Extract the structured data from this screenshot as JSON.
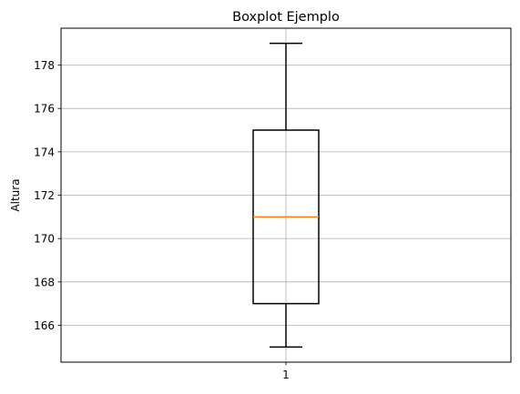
{
  "chart_data": {
    "type": "boxplot",
    "title": "Boxplot Ejemplo",
    "xlabel": "",
    "ylabel": "Altura",
    "categories": [
      "1"
    ],
    "boxes": [
      {
        "category": "1",
        "whisker_low": 165,
        "q1": 167,
        "median": 171,
        "q3": 175,
        "whisker_high": 179
      }
    ],
    "ylim": [
      164.3,
      179.7
    ],
    "yticks": [
      166,
      168,
      170,
      172,
      174,
      176,
      178
    ],
    "ytick_labels": [
      "166",
      "168",
      "170",
      "172",
      "174",
      "176",
      "178"
    ],
    "grid": true,
    "colors": {
      "box": "#000000",
      "median": "#ff7f0e",
      "grid": "#b0b0b0"
    }
  }
}
